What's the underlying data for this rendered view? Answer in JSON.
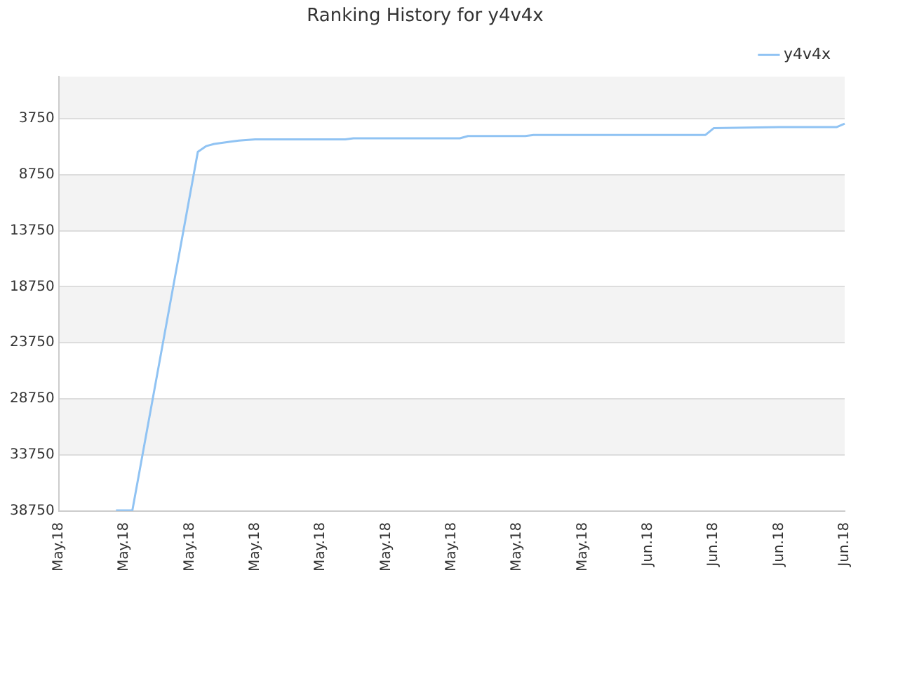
{
  "chart_data": {
    "type": "line",
    "title": "Ranking History for y4v4x",
    "categories": [
      "May.18",
      null,
      null,
      null,
      null,
      null,
      null,
      null,
      "May.18",
      null,
      null,
      null,
      null,
      null,
      null,
      null,
      "May.18",
      null,
      null,
      null,
      null,
      null,
      null,
      null,
      "May.18",
      null,
      null,
      null,
      null,
      null,
      null,
      null,
      "May.18",
      null,
      null,
      null,
      null,
      null,
      null,
      null,
      "May.18",
      null,
      null,
      null,
      null,
      null,
      null,
      null,
      "May.18",
      null,
      null,
      null,
      null,
      null,
      null,
      null,
      "May.18",
      null,
      null,
      null,
      null,
      null,
      null,
      null,
      "May.18",
      null,
      null,
      null,
      null,
      null,
      null,
      null,
      "Jun.18",
      null,
      null,
      null,
      null,
      null,
      null,
      null,
      "Jun.18",
      null,
      null,
      null,
      null,
      null,
      null,
      null,
      "Jun.18",
      null,
      null,
      null,
      null,
      null,
      null,
      null,
      "Jun.18"
    ],
    "series": [
      {
        "name": "y4v4x",
        "color": "#90c3f3",
        "values": [
          null,
          null,
          null,
          null,
          null,
          null,
          null,
          38700,
          38700,
          38700,
          null,
          null,
          null,
          null,
          null,
          null,
          null,
          6700,
          6200,
          6000,
          null,
          5800,
          5700,
          null,
          5600,
          null,
          null,
          null,
          null,
          null,
          null,
          null,
          null,
          null,
          null,
          5600,
          5500,
          null,
          null,
          null,
          null,
          null,
          null,
          null,
          null,
          null,
          null,
          null,
          null,
          5500,
          5300,
          null,
          null,
          null,
          null,
          null,
          null,
          5300,
          5200,
          null,
          null,
          null,
          null,
          null,
          null,
          null,
          null,
          null,
          null,
          null,
          null,
          null,
          null,
          null,
          null,
          null,
          null,
          null,
          null,
          5200,
          4600,
          null,
          null,
          null,
          null,
          null,
          null,
          null,
          4500,
          null,
          null,
          null,
          null,
          null,
          null,
          4500,
          4200
        ]
      }
    ],
    "ylim": [
      38750,
      0
    ],
    "yticks": [
      3750,
      8750,
      13750,
      18750,
      23750,
      28750,
      33750,
      38750
    ],
    "grid": "y",
    "legend": "top right",
    "marker": "none",
    "line_style": "solid"
  }
}
